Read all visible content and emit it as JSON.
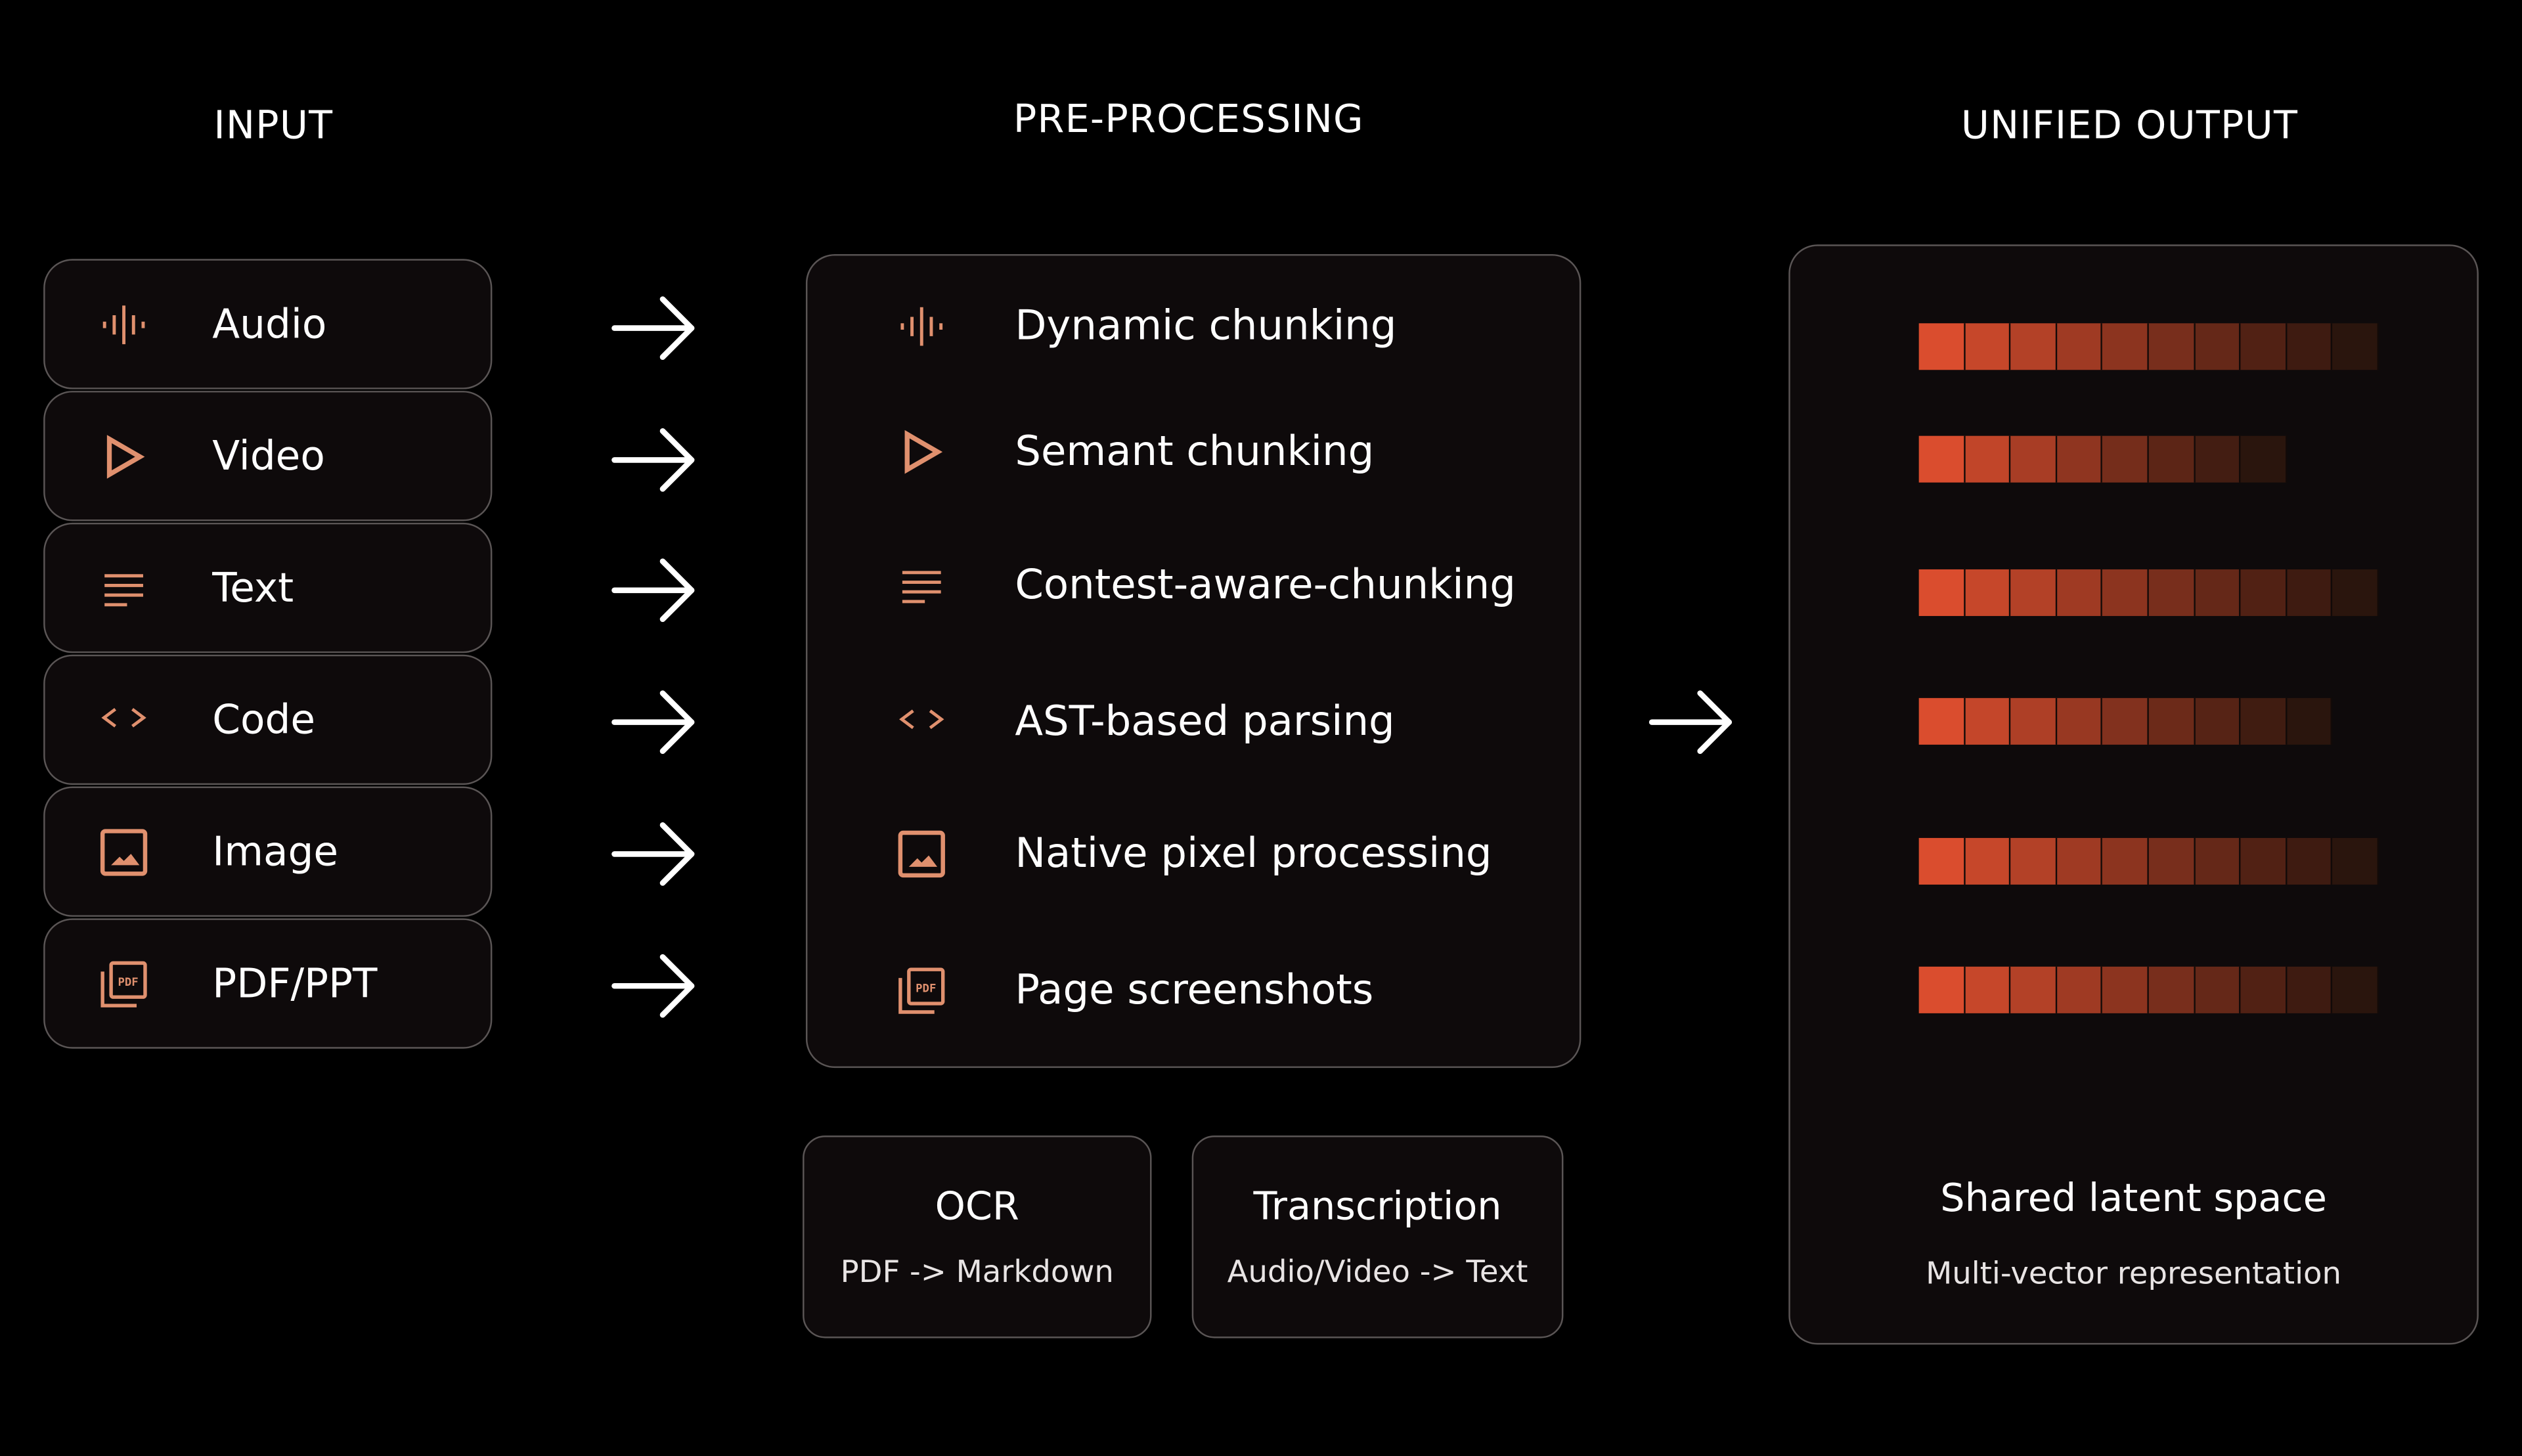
{
  "colors": {
    "background": "#000000",
    "panel": "#0e0a0b",
    "border": "#5a5555",
    "icon": "#e0906e",
    "bar_start": "#da4d2e",
    "bar_end": "#2a150d"
  },
  "headers": {
    "input": "INPUT",
    "preprocessing": "PRE-PROCESSING",
    "output": "UNIFIED OUTPUT"
  },
  "inputs": [
    {
      "label": "Audio",
      "icon": "waveform-icon"
    },
    {
      "label": "Video",
      "icon": "play-icon"
    },
    {
      "label": "Text",
      "icon": "text-lines-icon"
    },
    {
      "label": "Code",
      "icon": "code-brackets-icon"
    },
    {
      "label": "Image",
      "icon": "image-icon"
    },
    {
      "label": "PDF/PPT",
      "icon": "pdf-icon"
    }
  ],
  "preprocessing": [
    {
      "label": "Dynamic chunking",
      "icon": "waveform-icon"
    },
    {
      "label": "Semant chunking",
      "icon": "play-icon"
    },
    {
      "label": "Contest-aware-chunking",
      "icon": "text-lines-icon"
    },
    {
      "label": "AST-based parsing",
      "icon": "code-brackets-icon"
    },
    {
      "label": "Native pixel processing",
      "icon": "image-icon"
    },
    {
      "label": "Page screenshots",
      "icon": "pdf-icon"
    }
  ],
  "tools": [
    {
      "title": "OCR",
      "subtitle": "PDF -> Markdown"
    },
    {
      "title": "Transcription",
      "subtitle": "Audio/Video -> Text"
    }
  ],
  "output": {
    "title": "Shared latent space",
    "subtitle": "Multi-vector representation",
    "vector_segments": [
      10,
      8,
      10,
      9,
      10,
      10
    ]
  }
}
